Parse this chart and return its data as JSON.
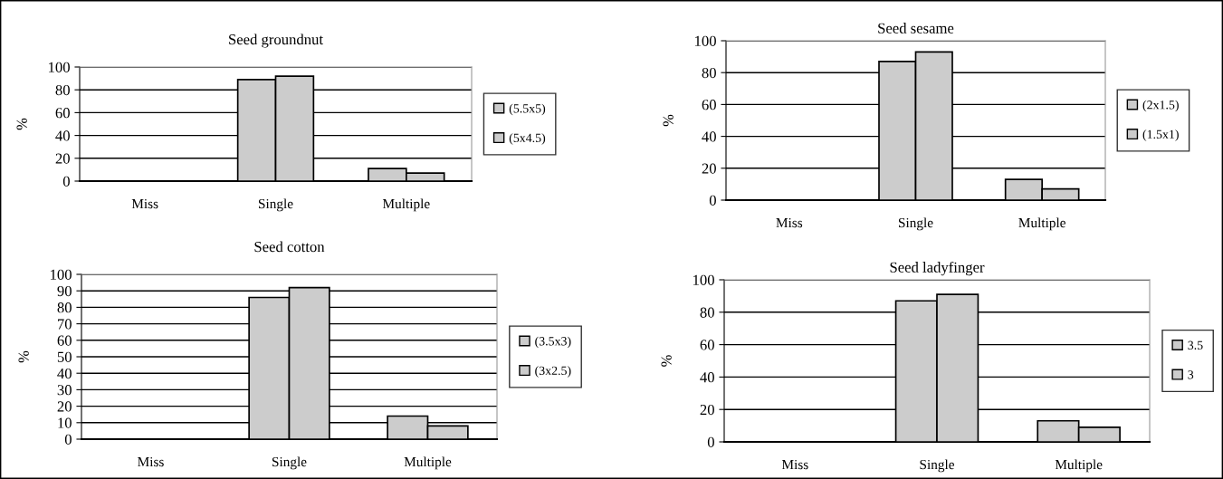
{
  "chart_data": [
    {
      "type": "bar",
      "title": "Seed groundnut",
      "ylabel": "%",
      "categories": [
        "Miss",
        "Single",
        "Multiple"
      ],
      "ylim": [
        0,
        100
      ],
      "yticks": [
        0,
        20,
        40,
        60,
        80,
        100
      ],
      "grid": "y",
      "legend": "right",
      "series": [
        {
          "name": "(5.5x5)",
          "color": "#cccccc",
          "values": [
            0,
            89,
            11
          ]
        },
        {
          "name": "(5x4.5)",
          "color": "#cccccc",
          "values": [
            0,
            92,
            7
          ]
        }
      ]
    },
    {
      "type": "bar",
      "title": "Seed sesame",
      "ylabel": "%",
      "categories": [
        "Miss",
        "Single",
        "Multiple"
      ],
      "ylim": [
        0,
        100
      ],
      "yticks": [
        0,
        20,
        40,
        60,
        80,
        100
      ],
      "grid": "y",
      "legend": "right",
      "series": [
        {
          "name": "(2x1.5)",
          "color": "#cccccc",
          "values": [
            0,
            87,
            13
          ]
        },
        {
          "name": "(1.5x1)",
          "color": "#cccccc",
          "values": [
            0,
            93,
            7
          ]
        }
      ]
    },
    {
      "type": "bar",
      "title": "Seed cotton",
      "ylabel": "%",
      "categories": [
        "Miss",
        "Single",
        "Multiple"
      ],
      "ylim": [
        0,
        100
      ],
      "yticks": [
        0,
        10,
        20,
        30,
        40,
        50,
        60,
        70,
        80,
        90,
        100
      ],
      "grid": "y",
      "legend": "right",
      "series": [
        {
          "name": "(3.5x3)",
          "color": "#cccccc",
          "values": [
            0,
            86,
            14
          ]
        },
        {
          "name": "(3x2.5)",
          "color": "#cccccc",
          "values": [
            0,
            92,
            8
          ]
        }
      ]
    },
    {
      "type": "bar",
      "title": "Seed ladyfinger",
      "ylabel": "%",
      "categories": [
        "Miss",
        "Single",
        "Multiple"
      ],
      "ylim": [
        0,
        100
      ],
      "yticks": [
        0,
        20,
        40,
        60,
        80,
        100
      ],
      "grid": "y",
      "legend": "right",
      "series": [
        {
          "name": "3.5",
          "color": "#cccccc",
          "values": [
            0,
            87,
            13
          ]
        },
        {
          "name": "3",
          "color": "#cccccc",
          "values": [
            0,
            91,
            9
          ]
        }
      ]
    }
  ]
}
